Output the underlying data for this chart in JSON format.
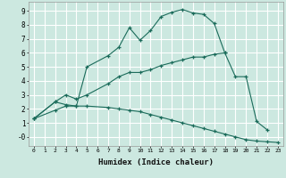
{
  "xlabel": "Humidex (Indice chaleur)",
  "bg_color": "#cce8e0",
  "grid_color": "#ffffff",
  "line_color": "#1a6b5a",
  "xlim": [
    -0.5,
    23.5
  ],
  "ylim": [
    -0.65,
    9.65
  ],
  "xticks": [
    0,
    1,
    2,
    3,
    4,
    5,
    6,
    7,
    8,
    9,
    10,
    11,
    12,
    13,
    14,
    15,
    16,
    17,
    18,
    19,
    20,
    21,
    22,
    23
  ],
  "yticks": [
    0,
    1,
    2,
    3,
    4,
    5,
    6,
    7,
    8,
    9
  ],
  "ylabel_special": "-0",
  "line1_x": [
    0,
    2,
    3,
    4,
    5,
    7,
    8,
    9,
    10,
    11,
    12,
    13,
    14,
    15,
    16,
    17,
    18,
    19,
    20,
    21,
    22
  ],
  "line1_y": [
    1.3,
    2.5,
    2.3,
    2.2,
    5.0,
    5.8,
    6.4,
    7.8,
    6.9,
    7.6,
    8.6,
    8.9,
    9.1,
    8.85,
    8.75,
    8.1,
    6.0,
    4.3,
    4.3,
    1.1,
    0.5
  ],
  "line2_x": [
    0,
    2,
    3,
    4,
    5,
    7,
    8,
    9,
    10,
    11,
    12,
    13,
    14,
    15,
    16,
    17,
    18
  ],
  "line2_y": [
    1.3,
    2.5,
    3.0,
    2.7,
    3.0,
    3.8,
    4.3,
    4.6,
    4.6,
    4.8,
    5.1,
    5.3,
    5.5,
    5.7,
    5.7,
    5.9,
    6.0
  ],
  "line3_x": [
    0,
    2,
    3,
    4,
    5,
    7,
    8,
    9,
    10,
    11,
    12,
    13,
    14,
    15,
    16,
    17,
    18,
    19,
    20,
    21,
    22,
    23
  ],
  "line3_y": [
    1.3,
    1.9,
    2.2,
    2.2,
    2.2,
    2.1,
    2.0,
    1.9,
    1.8,
    1.6,
    1.4,
    1.2,
    1.0,
    0.8,
    0.6,
    0.4,
    0.2,
    0.0,
    -0.2,
    -0.3,
    -0.35,
    -0.4
  ]
}
